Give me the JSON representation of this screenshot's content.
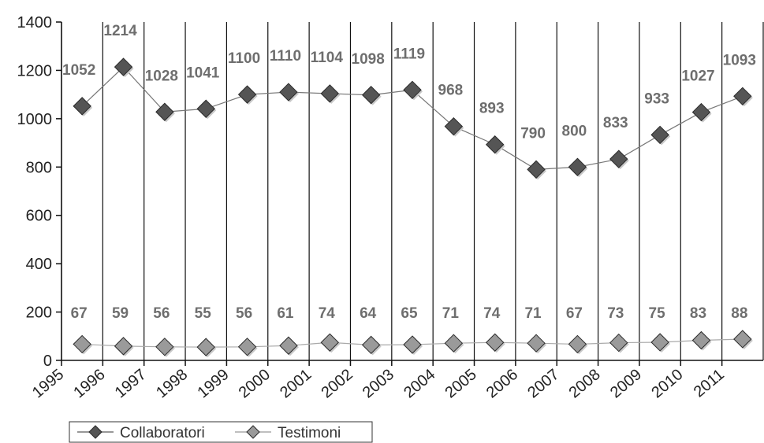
{
  "chart_data": {
    "type": "line",
    "x": [
      "1995",
      "1996",
      "1997",
      "1998",
      "1999",
      "2000",
      "2001",
      "2002",
      "2003",
      "2004",
      "2005",
      "2006",
      "2007",
      "2008",
      "2009",
      "2010",
      "2011"
    ],
    "series": [
      {
        "name": "Collaboratori",
        "values": [
          1052,
          1214,
          1028,
          1041,
          1100,
          1110,
          1104,
          1098,
          1119,
          968,
          893,
          790,
          800,
          833,
          933,
          1027,
          1093
        ],
        "marker_color": "#555555",
        "line_color": "#777777"
      },
      {
        "name": "Testimoni",
        "values": [
          67,
          59,
          56,
          55,
          56,
          61,
          74,
          64,
          65,
          71,
          74,
          71,
          67,
          73,
          75,
          83,
          88
        ],
        "marker_color": "#9a9a9a",
        "line_color": "#aaaaaa"
      }
    ],
    "ylim": [
      0,
      1400
    ],
    "yticks": [
      0,
      200,
      400,
      600,
      800,
      1000,
      1200,
      1400
    ],
    "grid": "vertical",
    "legend": "bottom-left",
    "data_labels": true
  }
}
